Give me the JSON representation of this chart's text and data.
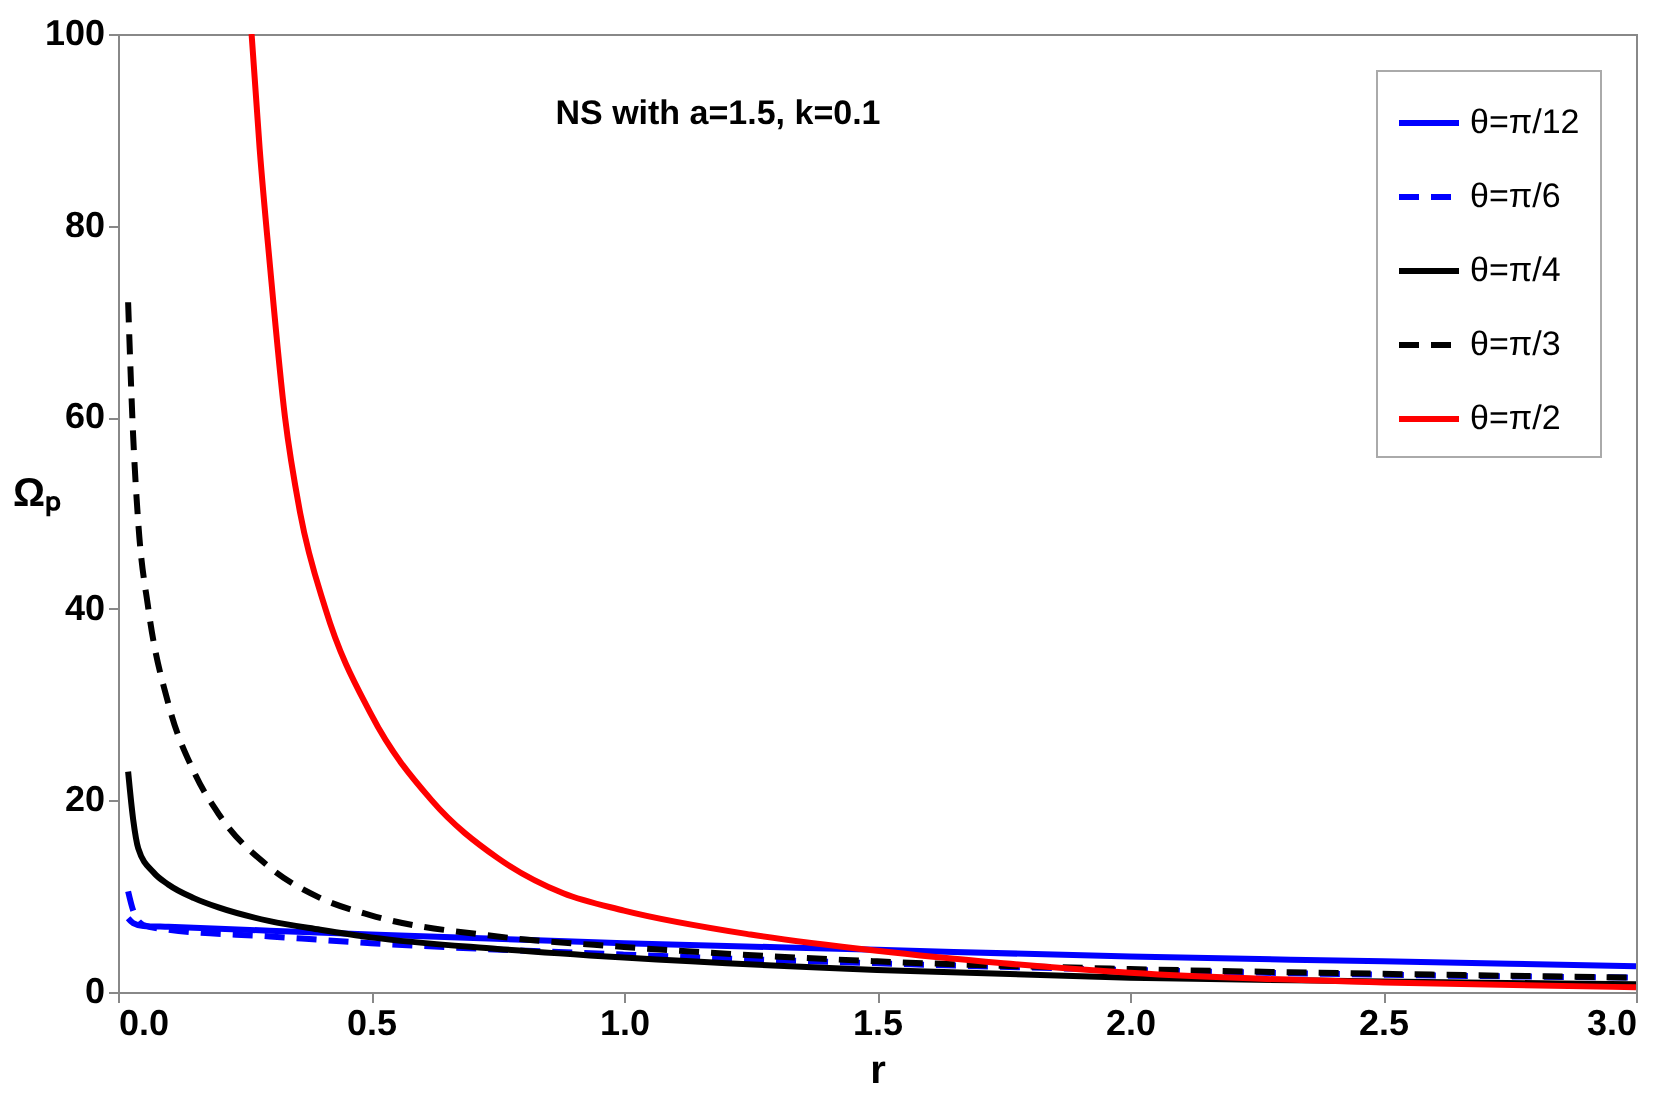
{
  "chart_data": {
    "type": "line",
    "xlabel": "r",
    "ylabel": "Ωₚ",
    "annotations": [
      "NS with a=1.5, k=0.1"
    ],
    "xlim": [
      0,
      3
    ],
    "ylim": [
      0,
      100
    ],
    "xticks": [
      {
        "value": 0,
        "label": "0.0"
      },
      {
        "value": 0.5,
        "label": "0.5"
      },
      {
        "value": 1,
        "label": "1.0"
      },
      {
        "value": 1.5,
        "label": "1.5"
      },
      {
        "value": 2,
        "label": "2.0"
      },
      {
        "value": 2.5,
        "label": "2.5"
      },
      {
        "value": 3,
        "label": "3.0"
      }
    ],
    "yticks": [
      0,
      20,
      40,
      60,
      80,
      100
    ],
    "grid": false,
    "legend": "top right",
    "marker": "none",
    "series": [
      {
        "name": "θ=π/12",
        "color": "#0000ff",
        "line_style": "solid",
        "x": [
          0.02,
          0.03,
          0.05,
          0.1,
          0.3,
          0.5,
          1.0,
          1.5,
          2.0,
          2.5,
          3.0
        ],
        "values": [
          7.7,
          7.2,
          6.9,
          6.8,
          6.4,
          6.0,
          5.1,
          4.4,
          3.7,
          3.2,
          2.7
        ]
      },
      {
        "name": "θ=π/6",
        "color": "#0000ff",
        "line_style": "dashed",
        "x": [
          0.02,
          0.03,
          0.05,
          0.1,
          0.3,
          0.5,
          1.0,
          1.5,
          2.0,
          2.5,
          3.0
        ],
        "values": [
          10.5,
          8.5,
          7.0,
          6.5,
          5.8,
          5.1,
          3.9,
          3.0,
          2.3,
          1.8,
          1.5
        ]
      },
      {
        "name": "θ=π/4",
        "color": "#000000",
        "line_style": "solid",
        "x": [
          0.02,
          0.03,
          0.04,
          0.07,
          0.1,
          0.15,
          0.2,
          0.3,
          0.4,
          0.5,
          0.75,
          1.0,
          1.5,
          2.0,
          2.5,
          3.0
        ],
        "values": [
          23,
          18,
          15,
          12.5,
          11.2,
          9.8,
          8.8,
          7.4,
          6.5,
          5.7,
          4.5,
          3.6,
          2.3,
          1.5,
          1.1,
          0.8
        ]
      },
      {
        "name": "θ=π/3",
        "color": "#000000",
        "line_style": "dashed",
        "x": [
          0.02,
          0.03,
          0.04,
          0.06,
          0.1,
          0.15,
          0.2,
          0.3,
          0.4,
          0.5,
          0.75,
          1.0,
          1.5,
          2.0,
          2.5,
          3.0
        ],
        "values": [
          72,
          58,
          49,
          40,
          30,
          23,
          18.5,
          13,
          9.8,
          8,
          5.8,
          4.7,
          3.2,
          2.4,
          1.9,
          1.5
        ]
      },
      {
        "name": "θ=π/2",
        "color": "#ff0000",
        "line_style": "solid",
        "x": [
          0.264,
          0.28,
          0.3,
          0.33,
          0.36,
          0.41,
          0.5,
          0.62,
          0.75,
          0.88,
          1.0,
          1.25,
          1.5,
          1.75,
          2.0,
          2.5,
          3.0
        ],
        "values": [
          100,
          88,
          76,
          60,
          50,
          40,
          29,
          20,
          14,
          10.3,
          8.5,
          6,
          4.3,
          3,
          2,
          1,
          0.5
        ]
      }
    ]
  }
}
